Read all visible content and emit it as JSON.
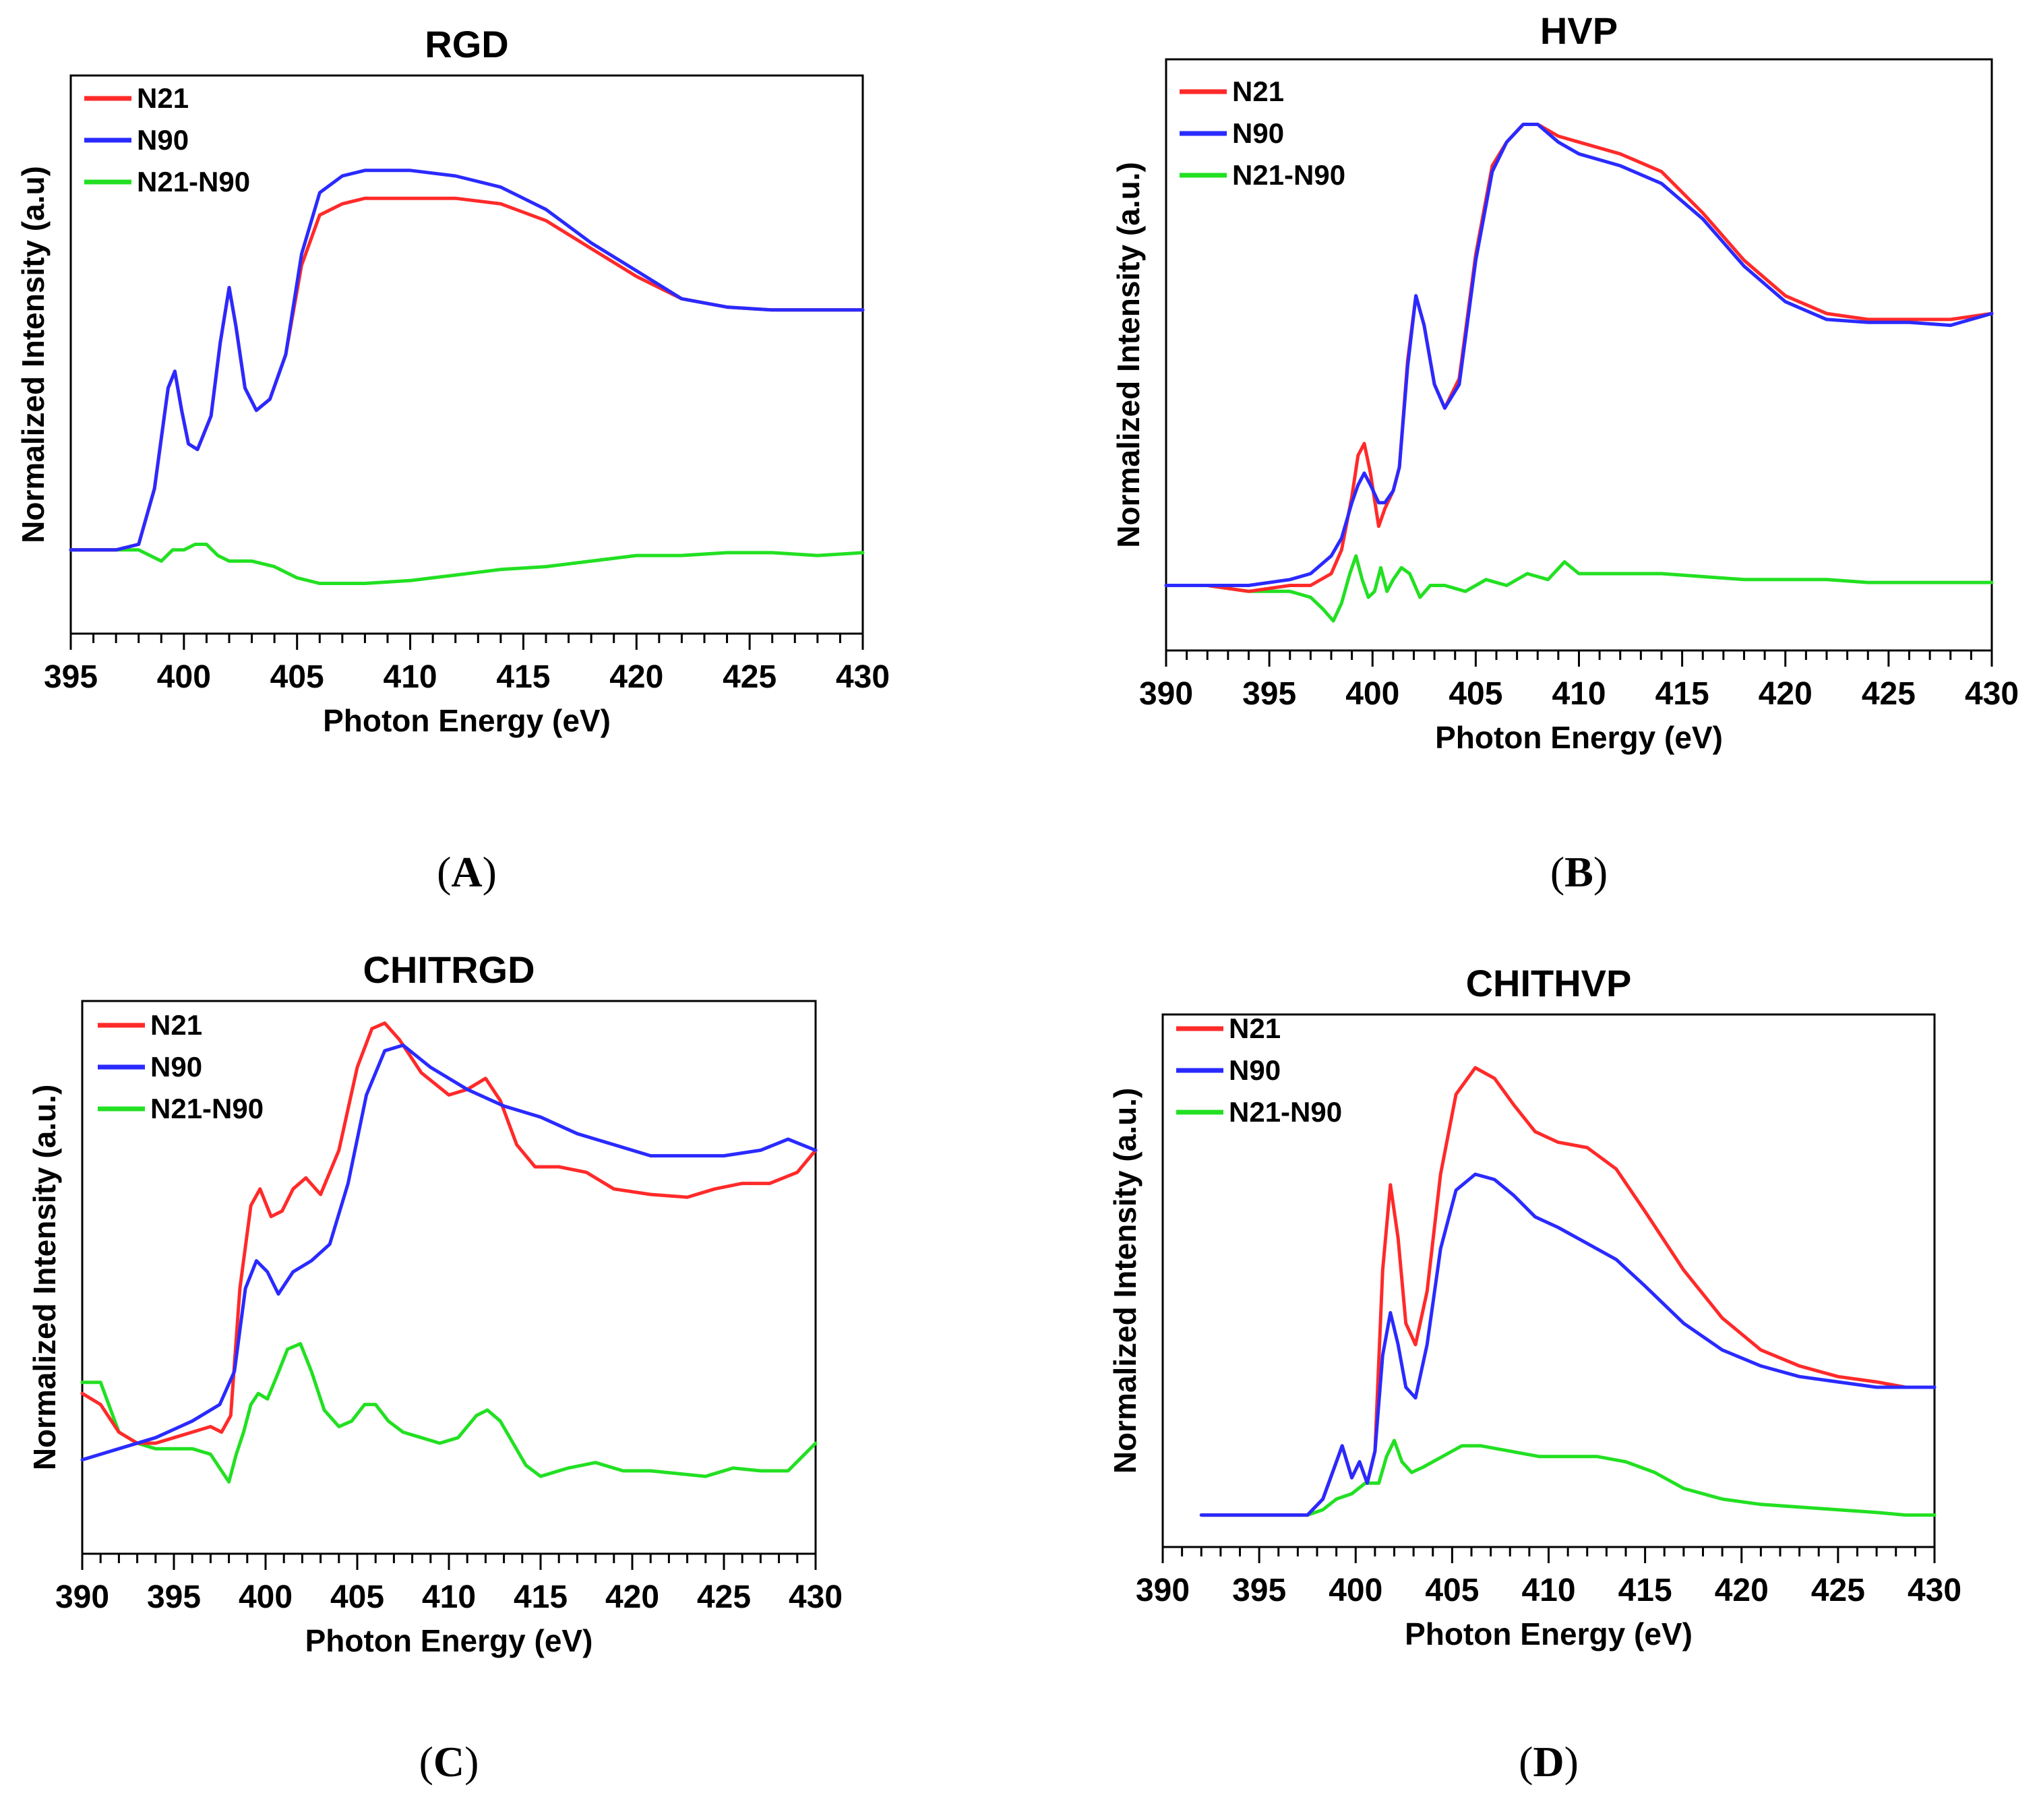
{
  "colors": {
    "N21": "#ff2a2a",
    "N90": "#2a2aff",
    "N21-N90": "#22e022"
  },
  "chart_data": [
    {
      "type": "line",
      "panel": "A",
      "caption": "A",
      "title": "RGD",
      "xlabel": "Photon Energy (eV)",
      "ylabel": "Normalized Intensity (a.u)",
      "xlim": [
        395,
        430
      ],
      "ylim": [
        0,
        1
      ],
      "xticks": [
        395,
        400,
        405,
        410,
        415,
        420,
        425,
        430
      ],
      "legend": [
        "N21",
        "N90",
        "N21-N90"
      ],
      "legend_position": "top-left",
      "series": [
        {
          "name": "N21",
          "x": [
            395,
            397,
            398,
            398.7,
            399.3,
            399.6,
            399.9,
            400.2,
            400.6,
            401.2,
            401.6,
            402.0,
            402.3,
            402.7,
            403.2,
            403.8,
            404.5,
            405.2,
            406,
            407,
            408,
            410,
            412,
            414,
            416,
            418,
            420,
            422,
            424,
            426,
            428,
            430
          ],
          "y": [
            0.15,
            0.15,
            0.16,
            0.26,
            0.44,
            0.47,
            0.4,
            0.34,
            0.33,
            0.39,
            0.52,
            0.62,
            0.55,
            0.44,
            0.4,
            0.42,
            0.5,
            0.66,
            0.75,
            0.77,
            0.78,
            0.78,
            0.78,
            0.77,
            0.74,
            0.69,
            0.64,
            0.6,
            0.585,
            0.58,
            0.58,
            0.58
          ]
        },
        {
          "name": "N90",
          "x": [
            395,
            397,
            398,
            398.7,
            399.3,
            399.6,
            399.9,
            400.2,
            400.6,
            401.2,
            401.6,
            402.0,
            402.3,
            402.7,
            403.2,
            403.8,
            404.5,
            405.2,
            406,
            407,
            408,
            410,
            412,
            414,
            416,
            418,
            420,
            422,
            424,
            426,
            428,
            430
          ],
          "y": [
            0.15,
            0.15,
            0.16,
            0.26,
            0.44,
            0.47,
            0.4,
            0.34,
            0.33,
            0.39,
            0.52,
            0.62,
            0.55,
            0.44,
            0.4,
            0.42,
            0.5,
            0.68,
            0.79,
            0.82,
            0.83,
            0.83,
            0.82,
            0.8,
            0.76,
            0.7,
            0.65,
            0.6,
            0.585,
            0.58,
            0.58,
            0.58
          ]
        },
        {
          "name": "N21-N90",
          "x": [
            395,
            397,
            398,
            399,
            399.5,
            400,
            400.5,
            401,
            401.5,
            402,
            403,
            404,
            405,
            406,
            408,
            410,
            412,
            414,
            416,
            418,
            420,
            422,
            424,
            426,
            428,
            430
          ],
          "y": [
            0.15,
            0.15,
            0.15,
            0.13,
            0.15,
            0.15,
            0.16,
            0.16,
            0.14,
            0.13,
            0.13,
            0.12,
            0.1,
            0.09,
            0.09,
            0.095,
            0.105,
            0.115,
            0.12,
            0.13,
            0.14,
            0.14,
            0.145,
            0.145,
            0.14,
            0.145
          ]
        }
      ]
    },
    {
      "type": "line",
      "panel": "B",
      "caption": "B",
      "title": "HVP",
      "xlabel": "Photon Energy (eV)",
      "ylabel": "Normalized Intensity (a.u.)",
      "xlim": [
        390,
        430
      ],
      "ylim": [
        0,
        1
      ],
      "xticks": [
        390,
        395,
        400,
        405,
        410,
        415,
        420,
        425,
        430
      ],
      "legend": [
        "N21",
        "N90",
        "N21-N90"
      ],
      "legend_position": "top-left",
      "series": [
        {
          "name": "N21",
          "x": [
            390,
            392,
            394,
            396,
            397,
            398,
            398.5,
            399,
            399.3,
            399.6,
            399.9,
            400.3,
            400.6,
            401,
            401.3,
            401.7,
            402.1,
            402.5,
            403,
            403.5,
            404.2,
            405,
            405.8,
            406.5,
            407.3,
            408,
            409,
            410,
            412,
            414,
            416,
            418,
            420,
            422,
            424,
            426,
            428,
            430
          ],
          "y": [
            0.11,
            0.11,
            0.1,
            0.11,
            0.11,
            0.13,
            0.17,
            0.26,
            0.33,
            0.35,
            0.3,
            0.21,
            0.24,
            0.27,
            0.31,
            0.49,
            0.6,
            0.55,
            0.45,
            0.41,
            0.46,
            0.67,
            0.82,
            0.86,
            0.89,
            0.89,
            0.87,
            0.86,
            0.84,
            0.81,
            0.74,
            0.66,
            0.6,
            0.57,
            0.56,
            0.56,
            0.56,
            0.57
          ]
        },
        {
          "name": "N90",
          "x": [
            390,
            392,
            394,
            396,
            397,
            398,
            398.5,
            399,
            399.3,
            399.6,
            399.9,
            400.3,
            400.6,
            401,
            401.3,
            401.7,
            402.1,
            402.5,
            403,
            403.5,
            404.2,
            405,
            405.8,
            406.5,
            407.3,
            408,
            409,
            410,
            412,
            414,
            416,
            418,
            420,
            422,
            424,
            426,
            428,
            430
          ],
          "y": [
            0.11,
            0.11,
            0.11,
            0.12,
            0.13,
            0.16,
            0.19,
            0.25,
            0.28,
            0.3,
            0.28,
            0.25,
            0.25,
            0.27,
            0.31,
            0.48,
            0.6,
            0.55,
            0.45,
            0.41,
            0.45,
            0.66,
            0.81,
            0.86,
            0.89,
            0.89,
            0.86,
            0.84,
            0.82,
            0.79,
            0.73,
            0.65,
            0.59,
            0.56,
            0.555,
            0.555,
            0.55,
            0.57
          ]
        },
        {
          "name": "N21-N90",
          "x": [
            390,
            392,
            394,
            396,
            397,
            397.6,
            398.1,
            398.5,
            398.9,
            399.2,
            399.5,
            399.8,
            400.1,
            400.4,
            400.7,
            401,
            401.4,
            401.8,
            402.3,
            402.8,
            403.5,
            404.5,
            405.5,
            406.5,
            407.5,
            408.5,
            409.3,
            410,
            412,
            414,
            416,
            418,
            420,
            422,
            424,
            426,
            428,
            430
          ],
          "y": [
            0.11,
            0.11,
            0.1,
            0.1,
            0.09,
            0.07,
            0.05,
            0.08,
            0.13,
            0.16,
            0.12,
            0.09,
            0.1,
            0.14,
            0.1,
            0.12,
            0.14,
            0.13,
            0.09,
            0.11,
            0.11,
            0.1,
            0.12,
            0.11,
            0.13,
            0.12,
            0.15,
            0.13,
            0.13,
            0.13,
            0.125,
            0.12,
            0.12,
            0.12,
            0.115,
            0.115,
            0.115,
            0.115
          ]
        }
      ]
    },
    {
      "type": "line",
      "panel": "C",
      "caption": "C",
      "title": "CHITRGD",
      "xlabel": "Photon Energy (eV)",
      "ylabel": "Normalized Intensity (a.u.)",
      "xlim": [
        390,
        430
      ],
      "ylim": [
        0,
        1
      ],
      "xticks": [
        390,
        395,
        400,
        405,
        410,
        415,
        420,
        425,
        430
      ],
      "legend": [
        "N21",
        "N90",
        "N21-N90"
      ],
      "legend_position": "top-left",
      "series": [
        {
          "name": "N21",
          "x": [
            390,
            391,
            392,
            393,
            394,
            395,
            396,
            397,
            397.6,
            398.1,
            398.6,
            399.2,
            399.7,
            400.3,
            400.9,
            401.5,
            402.2,
            403,
            404,
            405,
            405.8,
            406.5,
            407.3,
            408.5,
            410,
            411,
            412,
            412.8,
            413.7,
            414.7,
            416,
            417.5,
            419,
            421,
            423,
            424.5,
            426,
            427.5,
            429,
            430
          ],
          "y": [
            0.29,
            0.27,
            0.22,
            0.2,
            0.2,
            0.21,
            0.22,
            0.23,
            0.22,
            0.25,
            0.48,
            0.63,
            0.66,
            0.61,
            0.62,
            0.66,
            0.68,
            0.65,
            0.73,
            0.88,
            0.95,
            0.96,
            0.93,
            0.87,
            0.83,
            0.84,
            0.86,
            0.82,
            0.74,
            0.7,
            0.7,
            0.69,
            0.66,
            0.65,
            0.645,
            0.66,
            0.67,
            0.67,
            0.69,
            0.73
          ]
        },
        {
          "name": "N90",
          "x": [
            390,
            392,
            394,
            396,
            397.5,
            398.3,
            398.9,
            399.5,
            400.1,
            400.7,
            401.5,
            402.5,
            403.5,
            404.5,
            405.5,
            406.5,
            407.5,
            409,
            411,
            413,
            415,
            417,
            419,
            421,
            423,
            425,
            427,
            428.5,
            430
          ],
          "y": [
            0.17,
            0.19,
            0.21,
            0.24,
            0.27,
            0.33,
            0.48,
            0.53,
            0.51,
            0.47,
            0.51,
            0.53,
            0.56,
            0.67,
            0.83,
            0.91,
            0.92,
            0.88,
            0.84,
            0.81,
            0.79,
            0.76,
            0.74,
            0.72,
            0.72,
            0.72,
            0.73,
            0.75,
            0.73
          ]
        },
        {
          "name": "N21-N90",
          "x": [
            390,
            391,
            392,
            393,
            394,
            395,
            396,
            397,
            397.6,
            398,
            398.4,
            398.8,
            399.2,
            399.6,
            400.1,
            400.6,
            401.2,
            401.9,
            402.5,
            403.2,
            404,
            404.7,
            405.4,
            406,
            406.7,
            407.5,
            408.5,
            409.5,
            410.5,
            411.5,
            412.1,
            412.8,
            413.5,
            414.2,
            415,
            416.5,
            418,
            419.5,
            421,
            422.5,
            424,
            425.5,
            427,
            428.5,
            430
          ],
          "y": [
            0.31,
            0.31,
            0.22,
            0.2,
            0.19,
            0.19,
            0.19,
            0.18,
            0.15,
            0.13,
            0.18,
            0.22,
            0.27,
            0.29,
            0.28,
            0.32,
            0.37,
            0.38,
            0.33,
            0.26,
            0.23,
            0.24,
            0.27,
            0.27,
            0.24,
            0.22,
            0.21,
            0.2,
            0.21,
            0.25,
            0.26,
            0.24,
            0.2,
            0.16,
            0.14,
            0.155,
            0.165,
            0.15,
            0.15,
            0.145,
            0.14,
            0.155,
            0.15,
            0.15,
            0.2
          ]
        }
      ]
    },
    {
      "type": "line",
      "panel": "D",
      "caption": "D",
      "title": "CHITHVP",
      "xlabel": "Photon Energy (eV)",
      "ylabel": "Normalized Intensity (a.u.)",
      "xlim": [
        390,
        430
      ],
      "ylim": [
        0,
        1
      ],
      "xticks": [
        390,
        395,
        400,
        405,
        410,
        415,
        420,
        425,
        430
      ],
      "legend": [
        "N21",
        "N90",
        "N21-N90"
      ],
      "legend_position": "top-left",
      "series": [
        {
          "name": "N21",
          "x": [
            392,
            394,
            396,
            397.5,
            398.3,
            398.9,
            399.3,
            399.8,
            400.2,
            400.6,
            401,
            401.4,
            401.8,
            402.2,
            402.6,
            403.1,
            403.7,
            404.4,
            405.2,
            406.2,
            407.2,
            408.2,
            409.3,
            410.5,
            412,
            413.5,
            415,
            417,
            419,
            421,
            423,
            425,
            427,
            428.5,
            430
          ],
          "y": [
            0.06,
            0.06,
            0.06,
            0.06,
            0.09,
            0.15,
            0.19,
            0.13,
            0.16,
            0.12,
            0.18,
            0.52,
            0.68,
            0.58,
            0.42,
            0.38,
            0.48,
            0.7,
            0.85,
            0.9,
            0.88,
            0.83,
            0.78,
            0.76,
            0.75,
            0.71,
            0.63,
            0.52,
            0.43,
            0.37,
            0.34,
            0.32,
            0.31,
            0.3,
            0.3
          ]
        },
        {
          "name": "N90",
          "x": [
            392,
            394,
            396,
            397.5,
            398.3,
            398.9,
            399.3,
            399.8,
            400.2,
            400.6,
            401,
            401.4,
            401.8,
            402.2,
            402.6,
            403.1,
            403.7,
            404.4,
            405.2,
            406.2,
            407.2,
            408.2,
            409.3,
            410.5,
            412,
            413.5,
            415,
            417,
            419,
            421,
            423,
            425,
            427,
            428.5,
            430
          ],
          "y": [
            0.06,
            0.06,
            0.06,
            0.06,
            0.09,
            0.15,
            0.19,
            0.13,
            0.16,
            0.12,
            0.18,
            0.36,
            0.44,
            0.38,
            0.3,
            0.28,
            0.38,
            0.56,
            0.67,
            0.7,
            0.69,
            0.66,
            0.62,
            0.6,
            0.57,
            0.54,
            0.49,
            0.42,
            0.37,
            0.34,
            0.32,
            0.31,
            0.3,
            0.3,
            0.3
          ]
        },
        {
          "name": "N21-N90",
          "x": [
            392,
            394,
            396,
            397.5,
            398.3,
            399,
            399.8,
            400.5,
            401.2,
            401.6,
            402,
            402.4,
            402.9,
            403.5,
            404.5,
            405.5,
            406.5,
            408,
            409.5,
            411,
            412.5,
            414,
            415.5,
            417,
            419,
            421,
            423,
            425,
            427,
            428.5,
            430
          ],
          "y": [
            0.06,
            0.06,
            0.06,
            0.06,
            0.07,
            0.09,
            0.1,
            0.12,
            0.12,
            0.17,
            0.2,
            0.16,
            0.14,
            0.15,
            0.17,
            0.19,
            0.19,
            0.18,
            0.17,
            0.17,
            0.17,
            0.16,
            0.14,
            0.11,
            0.09,
            0.08,
            0.075,
            0.07,
            0.065,
            0.06,
            0.06
          ]
        }
      ]
    }
  ]
}
